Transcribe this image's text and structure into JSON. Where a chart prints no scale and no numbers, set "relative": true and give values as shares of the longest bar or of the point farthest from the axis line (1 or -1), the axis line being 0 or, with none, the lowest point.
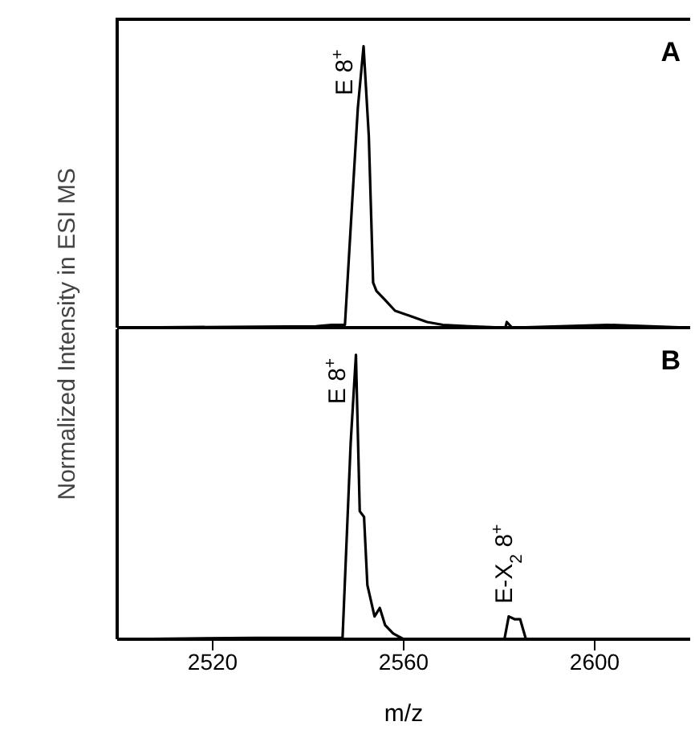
{
  "chart_data": [
    {
      "type": "line",
      "relative": true,
      "ylabel": "Normalized Intensity in ESI MS",
      "xlim": [
        2500,
        2620
      ],
      "xticks": [
        2520,
        2560,
        2600
      ],
      "tick_labels": false,
      "marker": "none",
      "line_style": "solid",
      "annotations": [
        {
          "text": "E 8$^{+}$",
          "x": 2551.6,
          "y": 1
        },
        "A"
      ],
      "series": [
        {
          "color": "#000000",
          "x": [
            2500,
            2541.6,
            2544.9,
            2547.7,
            2549.3,
            2550.4,
            2551.6,
            2552.7,
            2553.6,
            2554.3,
            2556,
            2558.2,
            2561.6,
            2564.9,
            2568.2,
            2573.8,
            2581.3,
            2581.6,
            2582.7,
            2602.7,
            2620
          ],
          "values": [
            0,
            0.005,
            0.01,
            0.01,
            0.47,
            0.78,
            1,
            0.68,
            0.16,
            0.13,
            0.1,
            0.06,
            0.04,
            0.02,
            0.01,
            0.005,
            0,
            0.02,
            0,
            0.01,
            0
          ]
        }
      ]
    },
    {
      "type": "line",
      "relative": true,
      "xlabel": "m/z",
      "xlim": [
        2500,
        2620
      ],
      "xticks": [
        2520,
        2560,
        2600
      ],
      "tick_labels": "x",
      "marker": "none",
      "line_style": "solid",
      "annotations": [
        {
          "text": "E 8$^{+}$",
          "x": 2550,
          "y": 1
        },
        {
          "text": "E-X$_{2}$ 8$^{+}$",
          "x": 2583.3,
          "y": 0.08
        },
        "B"
      ],
      "series": [
        {
          "color": "#000000",
          "x": [
            2500,
            2528.9,
            2547.2,
            2548.9,
            2550,
            2550.8,
            2551.7,
            2552.4,
            2553.9,
            2555,
            2556.1,
            2557.8,
            2560,
            2581.1,
            2582,
            2583.3,
            2584.4,
            2585.6,
            2620
          ],
          "values": [
            0,
            0.005,
            0.005,
            0.69,
            1,
            0.45,
            0.43,
            0.19,
            0.08,
            0.11,
            0.05,
            0.02,
            0,
            0,
            0.08,
            0.07,
            0.07,
            0,
            0
          ]
        }
      ]
    }
  ]
}
